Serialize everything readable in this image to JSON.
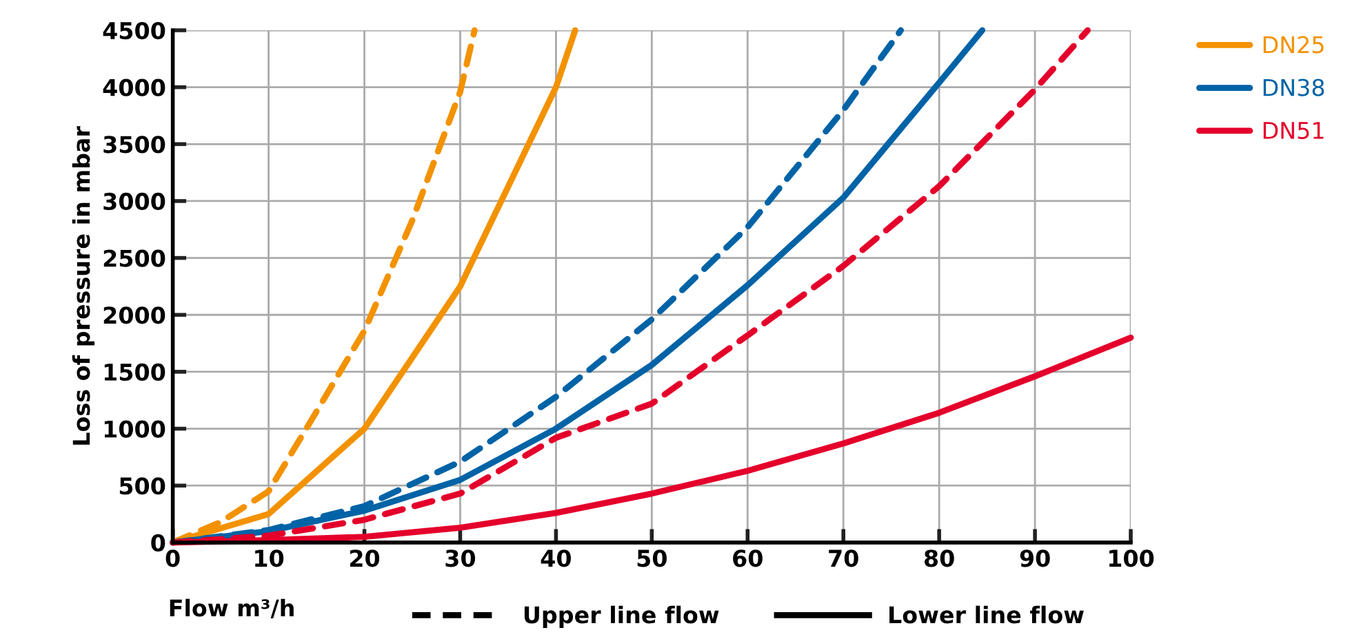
{
  "chart_data": {
    "type": "line",
    "xlabel": "Flow m³/h",
    "ylabel": "Loss of pressure in mbar",
    "xlim": [
      0,
      100
    ],
    "xticks": [
      0,
      10,
      20,
      30,
      40,
      50,
      60,
      70,
      80,
      90,
      100
    ],
    "ylim": [
      0,
      4500
    ],
    "yticks": [
      0,
      500,
      1000,
      1500,
      2000,
      2500,
      3000,
      3500,
      4000,
      4500
    ],
    "grid": true,
    "legend": "top right",
    "marker": "none",
    "annotations": [
      "Upper line flow",
      "Lower line flow"
    ],
    "series": [
      {
        "name": "DN25",
        "color": "#f39200",
        "line_style": "solid",
        "x": [
          0,
          10,
          20,
          30,
          40,
          42
        ],
        "values": [
          0,
          250,
          1000,
          2250,
          4000,
          4500
        ]
      },
      {
        "name": "DN38",
        "color": "#0063a6",
        "line_style": "solid",
        "x": [
          0,
          10,
          20,
          30,
          40,
          50,
          60,
          70,
          80,
          84.5
        ],
        "values": [
          0,
          100,
          280,
          550,
          1000,
          1560,
          2260,
          3030,
          4040,
          4500
        ]
      },
      {
        "name": "DN51",
        "color": "#e4002b",
        "line_style": "solid",
        "x": [
          0,
          10,
          20,
          30,
          40,
          50,
          60,
          70,
          80,
          90,
          100
        ],
        "values": [
          0,
          20,
          50,
          130,
          260,
          430,
          630,
          870,
          1140,
          1460,
          1800
        ]
      },
      {
        "color": "#f39200",
        "line_style": "dashed",
        "x": [
          0,
          5,
          10,
          15,
          20,
          25,
          30,
          31.5
        ],
        "values": [
          0,
          180,
          450,
          1150,
          1860,
          2830,
          3960,
          4500
        ]
      },
      {
        "color": "#0063a6",
        "line_style": "dashed",
        "x": [
          0,
          10,
          20,
          30,
          40,
          50,
          60,
          70,
          76
        ],
        "values": [
          0,
          110,
          320,
          710,
          1280,
          1960,
          2770,
          3800,
          4500
        ]
      },
      {
        "color": "#e4002b",
        "line_style": "dashed",
        "x": [
          0,
          10,
          20,
          30,
          40,
          50,
          60,
          70,
          80,
          90,
          95.5
        ],
        "values": [
          0,
          60,
          200,
          430,
          920,
          1220,
          1820,
          2430,
          3130,
          3980,
          4500
        ]
      }
    ]
  }
}
